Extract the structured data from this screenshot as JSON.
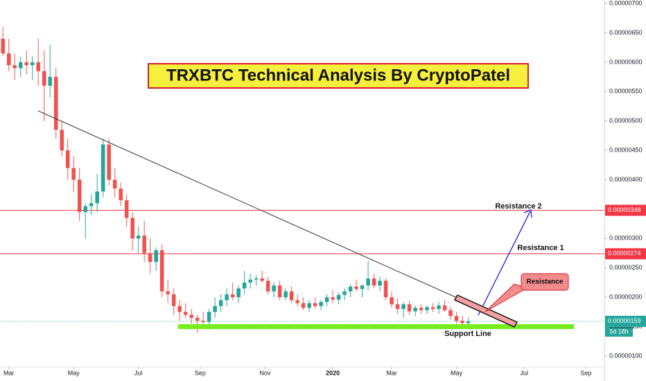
{
  "chart_data": {
    "type": "candlestick",
    "title": "TRXBTC Technical Analysis By CryptoPatel",
    "up_color": "#26a69a",
    "down_color": "#ef5350",
    "open": [
      6.4e-06,
      6.15e-06,
      5.95e-06,
      5.9e-06,
      6e-06,
      5.95e-06,
      6e-06,
      5.85e-06,
      5.6e-06,
      5.75e-06,
      4.85e-06,
      4.5e-06,
      4.2e-06,
      4e-06,
      3.45e-06,
      3.55e-06,
      3.6e-06,
      3.8e-06,
      4.6e-06,
      4e-06,
      3.85e-06,
      3.65e-06,
      3.35e-06,
      3e-06,
      3.05e-06,
      2.75e-06,
      2.6e-06,
      2.8e-06,
      2.1e-06,
      2.05e-06,
      1.85e-06,
      1.75e-06,
      1.7e-06,
      1.65e-06,
      1.6e-06,
      1.58e-06,
      1.75e-06,
      1.85e-06,
      1.95e-06,
      2.05e-06,
      2e-06,
      2.15e-06,
      2.25e-06,
      2.3e-06,
      2.32e-06,
      2.28e-06,
      2.1e-06,
      2.2e-06,
      2e-06,
      2.1e-06,
      1.95e-06,
      1.9e-06,
      1.82e-06,
      1.9e-06,
      1.85e-06,
      1.92e-06,
      2e-06,
      1.96e-06,
      2.04e-06,
      2.1e-06,
      2.18e-06,
      2.14e-06,
      2.2e-06,
      2.32e-06,
      2.2e-06,
      2.28e-06,
      2e-06,
      1.88e-06,
      1.8e-06,
      1.88e-06,
      1.76e-06,
      1.82e-06,
      1.78e-06,
      1.83e-06,
      1.8e-06,
      1.86e-06,
      1.78e-06,
      1.68e-06,
      1.6e-06,
      1.56e-06
    ],
    "high": [
      6.6e-06,
      6.4e-06,
      6.15e-06,
      6.1e-06,
      6.2e-06,
      6.1e-06,
      6.4e-06,
      6.2e-06,
      6.3e-06,
      5.9e-06,
      5e-06,
      4.7e-06,
      4.4e-06,
      4.2e-06,
      3.6e-06,
      3.75e-06,
      4.1e-06,
      4.7e-06,
      4.7e-06,
      4.2e-06,
      3.95e-06,
      3.75e-06,
      3.45e-06,
      3.2e-06,
      3.3e-06,
      3e-06,
      2.85e-06,
      2.9e-06,
      2.3e-06,
      2.15e-06,
      1.95e-06,
      1.9e-06,
      1.8e-06,
      1.7e-06,
      1.75e-06,
      1.8e-06,
      2e-06,
      2.05e-06,
      2.15e-06,
      2.25e-06,
      2.2e-06,
      2.45e-06,
      2.4e-06,
      2.38e-06,
      2.45e-06,
      2.35e-06,
      2.25e-06,
      2.28e-06,
      2.15e-06,
      2.18e-06,
      2.05e-06,
      2e-06,
      1.95e-06,
      2e-06,
      1.95e-06,
      2.05e-06,
      2.12e-06,
      2.08e-06,
      2.15e-06,
      2.22e-06,
      2.3e-06,
      2.22e-06,
      2.62e-06,
      2.4e-06,
      2.35e-06,
      2.32e-06,
      2.1e-06,
      1.98e-06,
      1.92e-06,
      1.94e-06,
      1.86e-06,
      1.88e-06,
      1.86e-06,
      1.9e-06,
      1.92e-06,
      1.96e-06,
      1.84e-06,
      1.75e-06,
      1.68e-06,
      1.65e-06
    ],
    "low": [
      6.1e-06,
      5.85e-06,
      5.7e-06,
      5.75e-06,
      5.8e-06,
      5.7e-06,
      5.6e-06,
      5e-06,
      5.4e-06,
      4.7e-06,
      4.4e-06,
      4e-06,
      3.8e-06,
      3.3e-06,
      3e-06,
      3.4e-06,
      3.45e-06,
      3.7e-06,
      3.9e-06,
      3.7e-06,
      3.55e-06,
      3.2e-06,
      2.8e-06,
      2.75e-06,
      2.6e-06,
      2.4e-06,
      2.45e-06,
      2e-06,
      1.9e-06,
      1.7e-06,
      1.6e-06,
      1.65e-06,
      1.55e-06,
      1.4e-06,
      1.5e-06,
      1.45e-06,
      1.65e-06,
      1.75e-06,
      1.85e-06,
      1.95e-06,
      1.9e-06,
      2.05e-06,
      2.15e-06,
      2.2e-06,
      2.25e-06,
      2.05e-06,
      2e-06,
      1.95e-06,
      1.95e-06,
      1.9e-06,
      1.85e-06,
      1.78e-06,
      1.75e-06,
      1.8e-06,
      1.78e-06,
      1.85e-06,
      1.9e-06,
      1.88e-06,
      1.95e-06,
      2e-06,
      2.1e-06,
      2e-06,
      2.12e-06,
      2.15e-06,
      2.1e-06,
      1.95e-06,
      1.82e-06,
      1.72e-06,
      1.65e-06,
      1.7e-06,
      1.68e-06,
      1.72e-06,
      1.72e-06,
      1.75e-06,
      1.72e-06,
      1.75e-06,
      1.62e-06,
      1.55e-06,
      1.5e-06,
      1.52e-06
    ],
    "close": [
      6.15e-06,
      5.95e-06,
      5.9e-06,
      6e-06,
      5.95e-06,
      6e-06,
      5.85e-06,
      5.6e-06,
      5.75e-06,
      4.85e-06,
      4.5e-06,
      4.2e-06,
      4e-06,
      3.45e-06,
      3.55e-06,
      3.6e-06,
      3.8e-06,
      4.6e-06,
      4e-06,
      3.85e-06,
      3.65e-06,
      3.35e-06,
      3e-06,
      3.05e-06,
      2.75e-06,
      2.6e-06,
      2.8e-06,
      2.1e-06,
      2.05e-06,
      1.85e-06,
      1.75e-06,
      1.7e-06,
      1.65e-06,
      1.6e-06,
      1.58e-06,
      1.75e-06,
      1.85e-06,
      1.95e-06,
      2.05e-06,
      2e-06,
      2.15e-06,
      2.25e-06,
      2.3e-06,
      2.32e-06,
      2.28e-06,
      2.1e-06,
      2.2e-06,
      2e-06,
      2.1e-06,
      1.95e-06,
      1.9e-06,
      1.82e-06,
      1.9e-06,
      1.85e-06,
      1.92e-06,
      2e-06,
      1.96e-06,
      2.04e-06,
      2.1e-06,
      2.18e-06,
      2.14e-06,
      2.2e-06,
      2.32e-06,
      2.2e-06,
      2.28e-06,
      2e-06,
      1.88e-06,
      1.8e-06,
      1.88e-06,
      1.76e-06,
      1.82e-06,
      1.78e-06,
      1.83e-06,
      1.8e-06,
      1.86e-06,
      1.78e-06,
      1.68e-06,
      1.6e-06,
      1.56e-06,
      1.59e-06
    ],
    "xlim": [
      -0.5,
      102
    ],
    "xticks": [
      {
        "value": 1,
        "label": "Mar"
      },
      {
        "value": 12,
        "label": "May"
      },
      {
        "value": 23,
        "label": "Jul"
      },
      {
        "value": 33.5,
        "label": "Sep"
      },
      {
        "value": 44.5,
        "label": "Nov"
      },
      {
        "value": 56,
        "label": "2020"
      },
      {
        "value": 66,
        "label": "Mar"
      },
      {
        "value": 77,
        "label": "May"
      },
      {
        "value": 88.5,
        "label": "Jul"
      },
      {
        "value": 99,
        "label": "Sep"
      }
    ],
    "ylim": [
      8.1e-07,
      7.06e-06
    ],
    "yticks": [
      {
        "value": 7e-06,
        "label": "0.00000700"
      },
      {
        "value": 6.5e-06,
        "label": "0.00000650"
      },
      {
        "value": 6e-06,
        "label": "0.00000600"
      },
      {
        "value": 5.5e-06,
        "label": "0.00000550"
      },
      {
        "value": 5e-06,
        "label": "0.00000500"
      },
      {
        "value": 4.5e-06,
        "label": "0.00000450"
      },
      {
        "value": 4e-06,
        "label": "0.00000400"
      },
      {
        "value": 3.5e-06,
        "label": "0.00000350"
      },
      {
        "value": 3e-06,
        "label": "0.00000300"
      },
      {
        "value": 2.5e-06,
        "label": "0.00000250"
      },
      {
        "value": 2e-06,
        "label": "0.00000200"
      },
      {
        "value": 1.5e-06,
        "label": "0.00000150"
      },
      {
        "value": 1e-06,
        "label": "0.00000100"
      }
    ],
    "price_lines": [
      {
        "value": 3.48e-06,
        "label": "0.00000348",
        "color": "#f23645",
        "style": "solid"
      },
      {
        "value": 2.74e-06,
        "label": "0.00000274",
        "color": "#f23645",
        "style": "solid"
      },
      {
        "value": 1.59e-06,
        "label": "0.00000159",
        "color": "#26a69a",
        "style": "dotted"
      }
    ],
    "countdown": "5d 18h",
    "annotations": [
      "Resistance 2",
      "Resistance 1",
      "Resistance",
      "Support Line"
    ]
  }
}
